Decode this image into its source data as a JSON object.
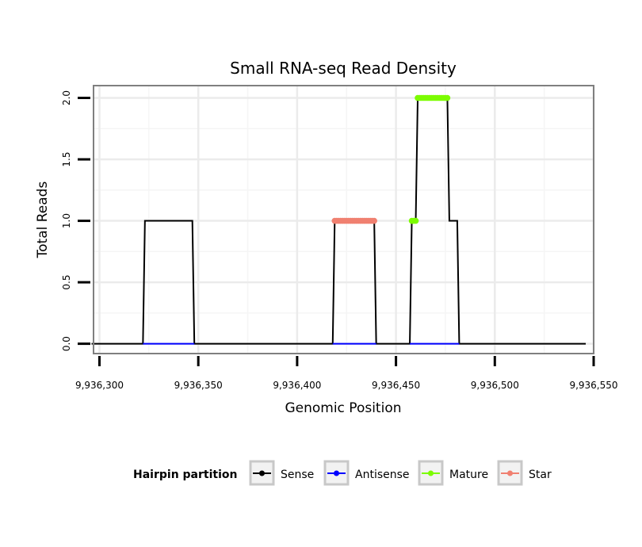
{
  "chart_data": {
    "type": "line",
    "title": "Small RNA-seq Read Density",
    "xlabel": "Genomic Position",
    "ylabel": "Total Reads",
    "xlim": [
      9936297,
      9936550
    ],
    "ylim": [
      -0.08,
      2.1
    ],
    "x_ticks": [
      9936300,
      9936350,
      9936400,
      9936450,
      9936500,
      9936550
    ],
    "x_tick_labels": [
      "9,936,300",
      "9,936,350",
      "9,936,400",
      "9,936,450",
      "9,936,500",
      "9,936,550"
    ],
    "y_ticks": [
      0.0,
      0.5,
      1.0,
      1.5,
      2.0
    ],
    "y_tick_labels": [
      "0.0",
      "0.5",
      "1.0",
      "1.5",
      "2.0"
    ],
    "grid": true,
    "legend": {
      "title": "Hairpin partition",
      "position": "bottom",
      "entries": [
        "Sense",
        "Antisense",
        "Mature",
        "Star"
      ]
    },
    "series": [
      {
        "name": "Sense",
        "color": "#000000",
        "style": "line",
        "x": [
          9936296,
          9936322,
          9936323,
          9936347,
          9936348,
          9936418,
          9936419,
          9936439,
          9936440,
          9936457,
          9936458,
          9936460,
          9936461,
          9936476,
          9936477,
          9936481,
          9936482,
          9936546
        ],
        "y": [
          0,
          0,
          1,
          1,
          0,
          0,
          1,
          1,
          0,
          0,
          1,
          1,
          2,
          2,
          1,
          1,
          0,
          0
        ]
      },
      {
        "name": "Antisense",
        "color": "#0000ff",
        "style": "line",
        "x": [
          9936322,
          9936348,
          9936418,
          9936440,
          9936457,
          9936482
        ],
        "y": [
          0,
          0,
          0,
          0,
          0,
          0
        ],
        "segments": [
          [
            0,
            1
          ],
          [
            2,
            3
          ],
          [
            4,
            5
          ]
        ]
      },
      {
        "name": "Mature",
        "color": "#7cfc00",
        "style": "points",
        "x": [
          9936458,
          9936459,
          9936460,
          9936461,
          9936462,
          9936463,
          9936464,
          9936465,
          9936466,
          9936467,
          9936468,
          9936469,
          9936470,
          9936471,
          9936472,
          9936473,
          9936474,
          9936475,
          9936476
        ],
        "y": [
          1,
          1,
          1,
          2,
          2,
          2,
          2,
          2,
          2,
          2,
          2,
          2,
          2,
          2,
          2,
          2,
          2,
          2,
          2
        ]
      },
      {
        "name": "Star",
        "color": "#f08070",
        "style": "points",
        "x": [
          9936419,
          9936420,
          9936421,
          9936422,
          9936423,
          9936424,
          9936425,
          9936426,
          9936427,
          9936428,
          9936429,
          9936430,
          9936431,
          9936432,
          9936433,
          9936434,
          9936435,
          9936436,
          9936437,
          9936438,
          9936439
        ],
        "y": [
          1,
          1,
          1,
          1,
          1,
          1,
          1,
          1,
          1,
          1,
          1,
          1,
          1,
          1,
          1,
          1,
          1,
          1,
          1,
          1,
          1
        ]
      }
    ]
  }
}
